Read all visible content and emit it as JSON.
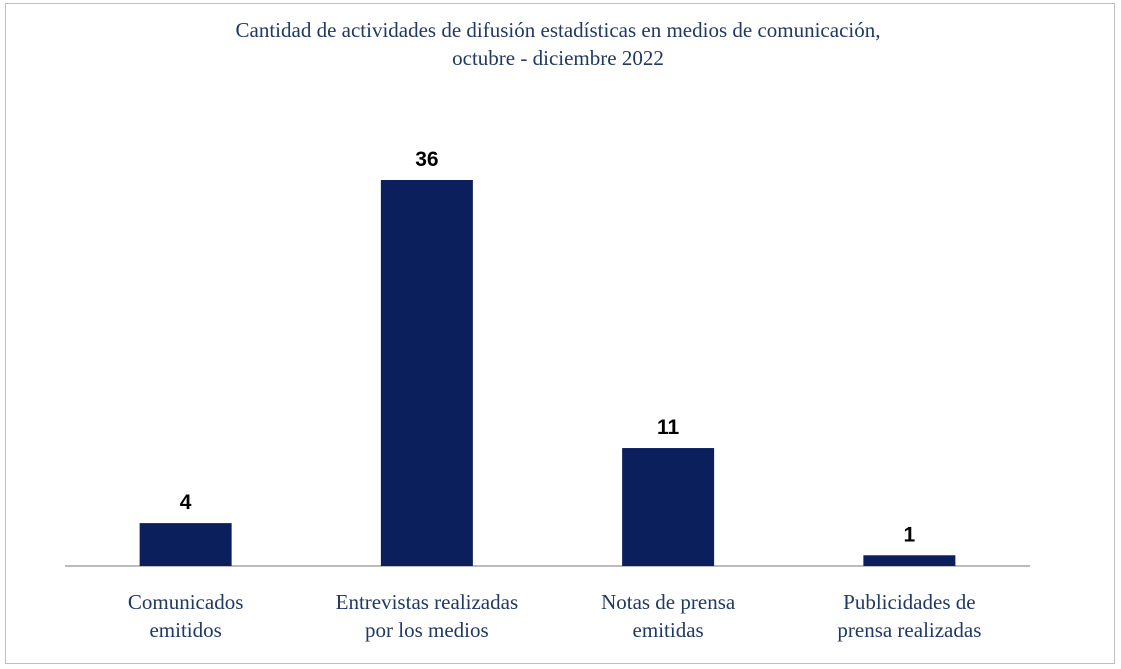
{
  "chart_data": {
    "type": "bar",
    "title": "Cantidad de actividades de difusión estadísticas en medios de comunicación,\noctubre  - diciembre 2022",
    "categories": [
      "Comunicados\nemitidos",
      "Entrevistas realizadas\npor los medios",
      "Notas de prensa\nemitidas",
      "Publicidades de\nprensa realizadas"
    ],
    "values": [
      4,
      36,
      11,
      1
    ],
    "color": "#0b1f5c"
  }
}
